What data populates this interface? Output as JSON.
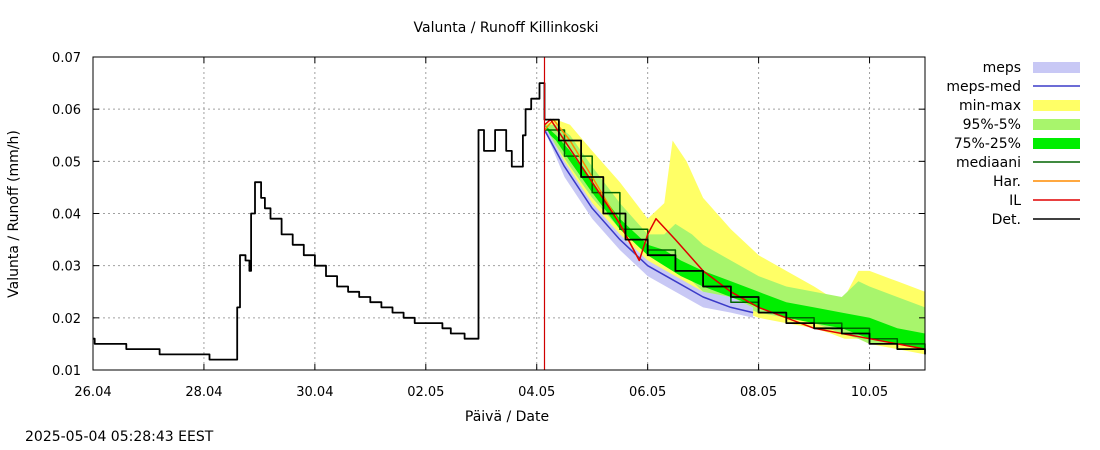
{
  "chart_data": {
    "type": "line",
    "title": "Valunta / Runoff  Killinkoski",
    "xlabel": "Päivä / Date",
    "ylabel": "Valunta / Runoff (mm/h)",
    "xlim": [
      0,
      15
    ],
    "ylim": [
      0.01,
      0.07
    ],
    "x_unit": "days since 26.04 00:00",
    "xticks": [
      {
        "x": 0,
        "label": "26.04"
      },
      {
        "x": 2,
        "label": "28.04"
      },
      {
        "x": 4,
        "label": "30.04"
      },
      {
        "x": 6,
        "label": "02.05"
      },
      {
        "x": 8,
        "label": "04.05"
      },
      {
        "x": 10,
        "label": "06.05"
      },
      {
        "x": 12,
        "label": "08.05"
      },
      {
        "x": 14,
        "label": "10.05"
      }
    ],
    "yticks": [
      {
        "y": 0.01,
        "label": "0.01"
      },
      {
        "y": 0.02,
        "label": "0.02"
      },
      {
        "y": 0.03,
        "label": "0.03"
      },
      {
        "y": 0.04,
        "label": "0.04"
      },
      {
        "y": 0.05,
        "label": "0.05"
      },
      {
        "y": 0.06,
        "label": "0.06"
      },
      {
        "y": 0.07,
        "label": "0.07"
      }
    ],
    "grid": true,
    "forecast_start_x": 8.14,
    "colors": {
      "meps": "#c8c8f5",
      "meps_med": "#3b3bc8",
      "minmax": "#ffff66",
      "p95_5": "#a8f56c",
      "p75_25": "#00ee00",
      "mediaani": "#006400",
      "har": "#ff8c00",
      "il": "#e00000",
      "det": "#000000",
      "vline": "#d00000"
    },
    "legend": [
      {
        "key": "meps",
        "label": "meps",
        "style": "band"
      },
      {
        "key": "meps_med",
        "label": "meps-med",
        "style": "line"
      },
      {
        "key": "minmax",
        "label": "min-max",
        "style": "band"
      },
      {
        "key": "p95_5",
        "label": "95%-5%",
        "style": "band"
      },
      {
        "key": "p75_25",
        "label": "75%-25%",
        "style": "band"
      },
      {
        "key": "mediaani",
        "label": "mediaani",
        "style": "line"
      },
      {
        "key": "har",
        "label": "Har.",
        "style": "line"
      },
      {
        "key": "il",
        "label": "IL",
        "style": "line"
      },
      {
        "key": "det",
        "label": "Det.",
        "style": "line"
      }
    ],
    "bands": {
      "minmax": {
        "x": [
          8.14,
          8.35,
          8.6,
          9.0,
          9.5,
          10.0,
          10.3,
          10.45,
          10.7,
          11.0,
          11.5,
          12.0,
          12.5,
          13.0,
          13.3,
          13.55,
          13.8,
          14.0,
          14.5,
          15.0
        ],
        "upper": [
          0.057,
          0.058,
          0.057,
          0.052,
          0.046,
          0.039,
          0.042,
          0.054,
          0.05,
          0.043,
          0.037,
          0.032,
          0.029,
          0.026,
          0.024,
          0.024,
          0.029,
          0.029,
          0.027,
          0.025
        ],
        "lower": [
          0.056,
          0.052,
          0.047,
          0.042,
          0.036,
          0.031,
          0.029,
          0.028,
          0.026,
          0.024,
          0.022,
          0.02,
          0.019,
          0.018,
          0.017,
          0.016,
          0.016,
          0.015,
          0.014,
          0.013
        ]
      },
      "p95_5": {
        "x": [
          8.14,
          8.35,
          8.6,
          9.0,
          9.5,
          10.0,
          10.3,
          10.5,
          10.8,
          11.0,
          11.5,
          12.0,
          12.5,
          13.0,
          13.5,
          13.8,
          14.0,
          14.5,
          15.0
        ],
        "upper": [
          0.057,
          0.057,
          0.055,
          0.049,
          0.042,
          0.036,
          0.036,
          0.038,
          0.036,
          0.034,
          0.031,
          0.028,
          0.026,
          0.025,
          0.024,
          0.027,
          0.026,
          0.024,
          0.022
        ],
        "lower": [
          0.056,
          0.053,
          0.049,
          0.043,
          0.037,
          0.032,
          0.03,
          0.029,
          0.027,
          0.025,
          0.023,
          0.021,
          0.02,
          0.019,
          0.017,
          0.016,
          0.015,
          0.015,
          0.014
        ]
      },
      "p75_25": {
        "x": [
          8.14,
          8.35,
          8.6,
          9.0,
          9.5,
          10.0,
          10.3,
          10.6,
          11.0,
          11.5,
          12.0,
          12.5,
          13.0,
          13.5,
          14.0,
          14.5,
          15.0
        ],
        "upper": [
          0.057,
          0.055,
          0.052,
          0.046,
          0.039,
          0.034,
          0.033,
          0.031,
          0.029,
          0.027,
          0.025,
          0.023,
          0.022,
          0.021,
          0.02,
          0.018,
          0.017
        ],
        "lower": [
          0.056,
          0.054,
          0.05,
          0.044,
          0.037,
          0.032,
          0.03,
          0.028,
          0.026,
          0.024,
          0.022,
          0.02,
          0.019,
          0.018,
          0.016,
          0.015,
          0.014
        ]
      },
      "meps": {
        "x": [
          8.14,
          8.5,
          9.0,
          9.5,
          10.0,
          10.5,
          11.0,
          11.5,
          11.9
        ],
        "upper": [
          0.057,
          0.05,
          0.042,
          0.036,
          0.031,
          0.028,
          0.025,
          0.024,
          0.022
        ],
        "lower": [
          0.056,
          0.047,
          0.039,
          0.033,
          0.028,
          0.025,
          0.022,
          0.021,
          0.02
        ]
      }
    },
    "series": [
      {
        "key": "det",
        "name": "Det.",
        "step": true,
        "x": [
          0.0,
          0.03,
          0.55,
          0.6,
          1.15,
          1.2,
          1.6,
          1.7,
          2.1,
          2.15,
          2.5,
          2.6,
          2.65,
          2.75,
          2.82,
          2.85,
          2.92,
          2.98,
          3.03,
          3.1,
          3.2,
          3.4,
          3.6,
          3.8,
          4.0,
          4.2,
          4.4,
          4.6,
          4.8,
          5.0,
          5.2,
          5.4,
          5.6,
          5.8,
          6.0,
          6.3,
          6.45,
          6.55,
          6.7,
          6.8,
          6.95,
          7.05,
          7.25,
          7.45,
          7.55,
          7.65,
          7.75,
          7.8,
          7.9,
          8.05,
          8.14,
          8.4,
          8.8,
          9.2,
          9.6,
          10.0,
          10.5,
          11.0,
          11.5,
          12.0,
          12.5,
          13.0,
          13.5,
          14.0,
          14.5,
          15.0
        ],
        "y": [
          0.016,
          0.015,
          0.015,
          0.014,
          0.014,
          0.013,
          0.013,
          0.013,
          0.012,
          0.012,
          0.012,
          0.022,
          0.032,
          0.031,
          0.029,
          0.04,
          0.046,
          0.046,
          0.043,
          0.041,
          0.039,
          0.036,
          0.034,
          0.032,
          0.03,
          0.028,
          0.026,
          0.025,
          0.024,
          0.023,
          0.022,
          0.021,
          0.02,
          0.019,
          0.019,
          0.018,
          0.017,
          0.017,
          0.016,
          0.016,
          0.056,
          0.052,
          0.056,
          0.052,
          0.049,
          0.049,
          0.055,
          0.06,
          0.062,
          0.065,
          0.058,
          0.054,
          0.047,
          0.04,
          0.035,
          0.032,
          0.029,
          0.026,
          0.024,
          0.021,
          0.019,
          0.018,
          0.017,
          0.015,
          0.014,
          0.013
        ]
      },
      {
        "key": "il",
        "name": "IL",
        "step": false,
        "x": [
          8.14,
          8.25,
          8.5,
          9.0,
          9.5,
          9.85,
          10.0,
          10.15,
          10.5,
          11.0,
          11.5,
          12.0,
          12.5,
          13.0,
          13.5,
          14.0,
          14.5,
          15.0
        ],
        "y": [
          0.057,
          0.058,
          0.054,
          0.046,
          0.038,
          0.031,
          0.036,
          0.039,
          0.035,
          0.029,
          0.025,
          0.022,
          0.02,
          0.018,
          0.017,
          0.016,
          0.015,
          0.014
        ]
      },
      {
        "key": "har",
        "name": "Har.",
        "step": false,
        "x": [
          8.14,
          8.3,
          8.6,
          9.0,
          9.5,
          9.85
        ],
        "y": [
          0.056,
          0.058,
          0.054,
          0.047,
          0.038,
          0.031
        ]
      },
      {
        "key": "mediaani",
        "name": "mediaani",
        "step": true,
        "x": [
          8.14,
          8.5,
          9.0,
          9.5,
          10.0,
          10.5,
          11.0,
          11.5,
          12.0,
          12.5,
          13.0,
          13.5,
          14.0,
          14.5,
          15.0
        ],
        "y": [
          0.056,
          0.051,
          0.044,
          0.037,
          0.033,
          0.029,
          0.026,
          0.023,
          0.021,
          0.02,
          0.019,
          0.018,
          0.016,
          0.015,
          0.014
        ]
      },
      {
        "key": "meps_med",
        "name": "meps-med",
        "step": false,
        "x": [
          8.14,
          8.5,
          9.0,
          9.5,
          10.0,
          10.5,
          11.0,
          11.5,
          11.9
        ],
        "y": [
          0.056,
          0.049,
          0.041,
          0.035,
          0.03,
          0.027,
          0.024,
          0.022,
          0.021
        ]
      }
    ]
  },
  "footer": {
    "timestamp": "2025-05-04  05:28:43 EEST"
  }
}
